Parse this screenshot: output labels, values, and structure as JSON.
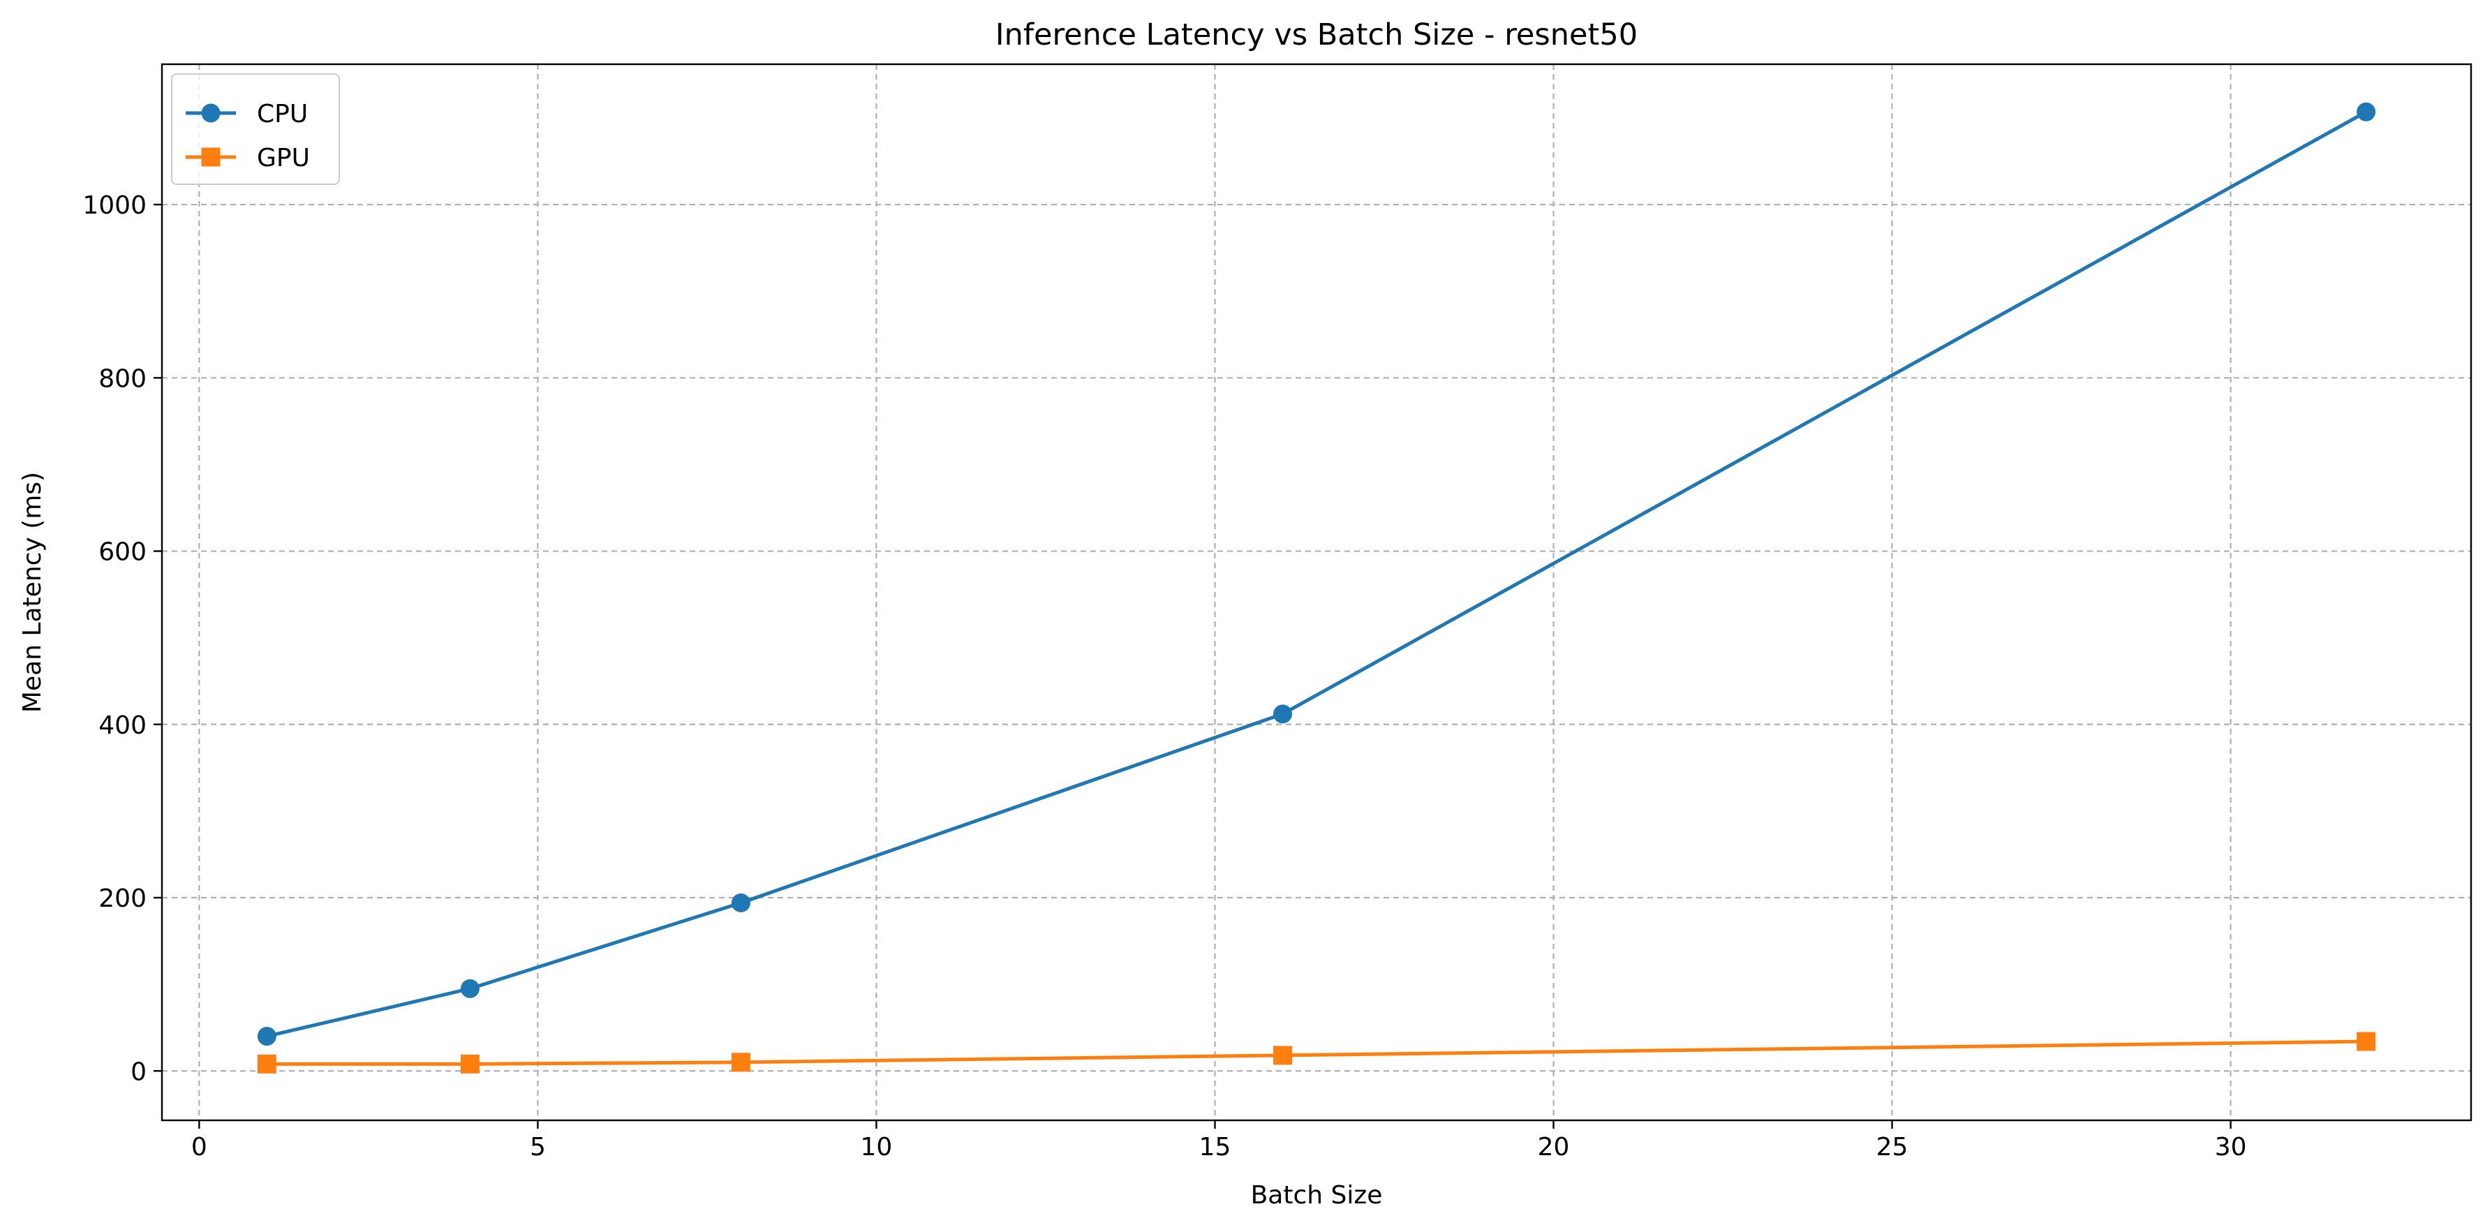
{
  "chart_data": {
    "type": "line",
    "title": "Inference Latency vs Batch Size - resnet50",
    "xlabel": "Batch Size",
    "ylabel": "Mean Latency (ms)",
    "xlim": [
      -0.55,
      33.55
    ],
    "ylim": [
      -57,
      1162
    ],
    "xticks": [
      0,
      5,
      10,
      15,
      20,
      25,
      30
    ],
    "yticks": [
      0,
      200,
      400,
      600,
      800,
      1000
    ],
    "grid": true,
    "legend_position": "top-left",
    "x": [
      1,
      4,
      8,
      16,
      32
    ],
    "series": [
      {
        "name": "CPU",
        "values": [
          40,
          95,
          194,
          412,
          1107
        ],
        "color": "#1f77b4",
        "marker": "circle"
      },
      {
        "name": "GPU",
        "values": [
          8,
          8,
          10,
          18,
          34
        ],
        "color": "#ff7f0e",
        "marker": "square"
      }
    ]
  }
}
